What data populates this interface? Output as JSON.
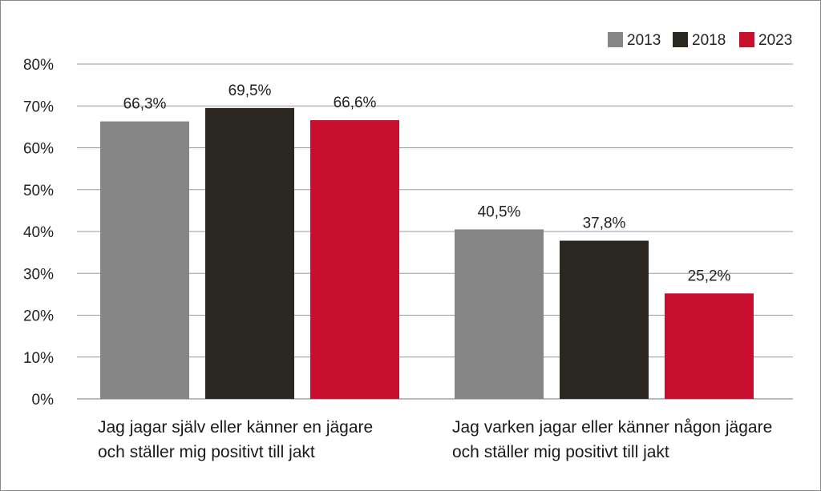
{
  "chart_data": {
    "type": "bar",
    "categories": [
      [
        "Jag jagar själv eller känner en jägare",
        "och ställer mig positivt till jakt"
      ],
      [
        "Jag varken jagar eller känner någon jägare",
        "och ställer mig positivt till jakt"
      ]
    ],
    "series": [
      {
        "name": "2013",
        "color": "#868686",
        "values": [
          66.3,
          40.5
        ],
        "labels": [
          "66,3%",
          "40,5%"
        ]
      },
      {
        "name": "2018",
        "color": "#2a2622",
        "values": [
          69.5,
          37.8
        ],
        "labels": [
          "69,5%",
          "37,8%"
        ]
      },
      {
        "name": "2023",
        "color": "#c8102e",
        "values": [
          66.6,
          25.2
        ],
        "labels": [
          "66,6%",
          "25,2%"
        ]
      }
    ],
    "y_ticks": [
      {
        "value": 0,
        "label": "0%"
      },
      {
        "value": 10,
        "label": "10%"
      },
      {
        "value": 20,
        "label": "20%"
      },
      {
        "value": 30,
        "label": "30%"
      },
      {
        "value": 40,
        "label": "40%"
      },
      {
        "value": 50,
        "label": "50%"
      },
      {
        "value": 60,
        "label": "60%"
      },
      {
        "value": 70,
        "label": "70%"
      },
      {
        "value": 80,
        "label": "80%"
      }
    ],
    "ylim": [
      0,
      80
    ],
    "grid": true,
    "legend": "top-right",
    "title": "",
    "xlabel": "",
    "ylabel": ""
  }
}
